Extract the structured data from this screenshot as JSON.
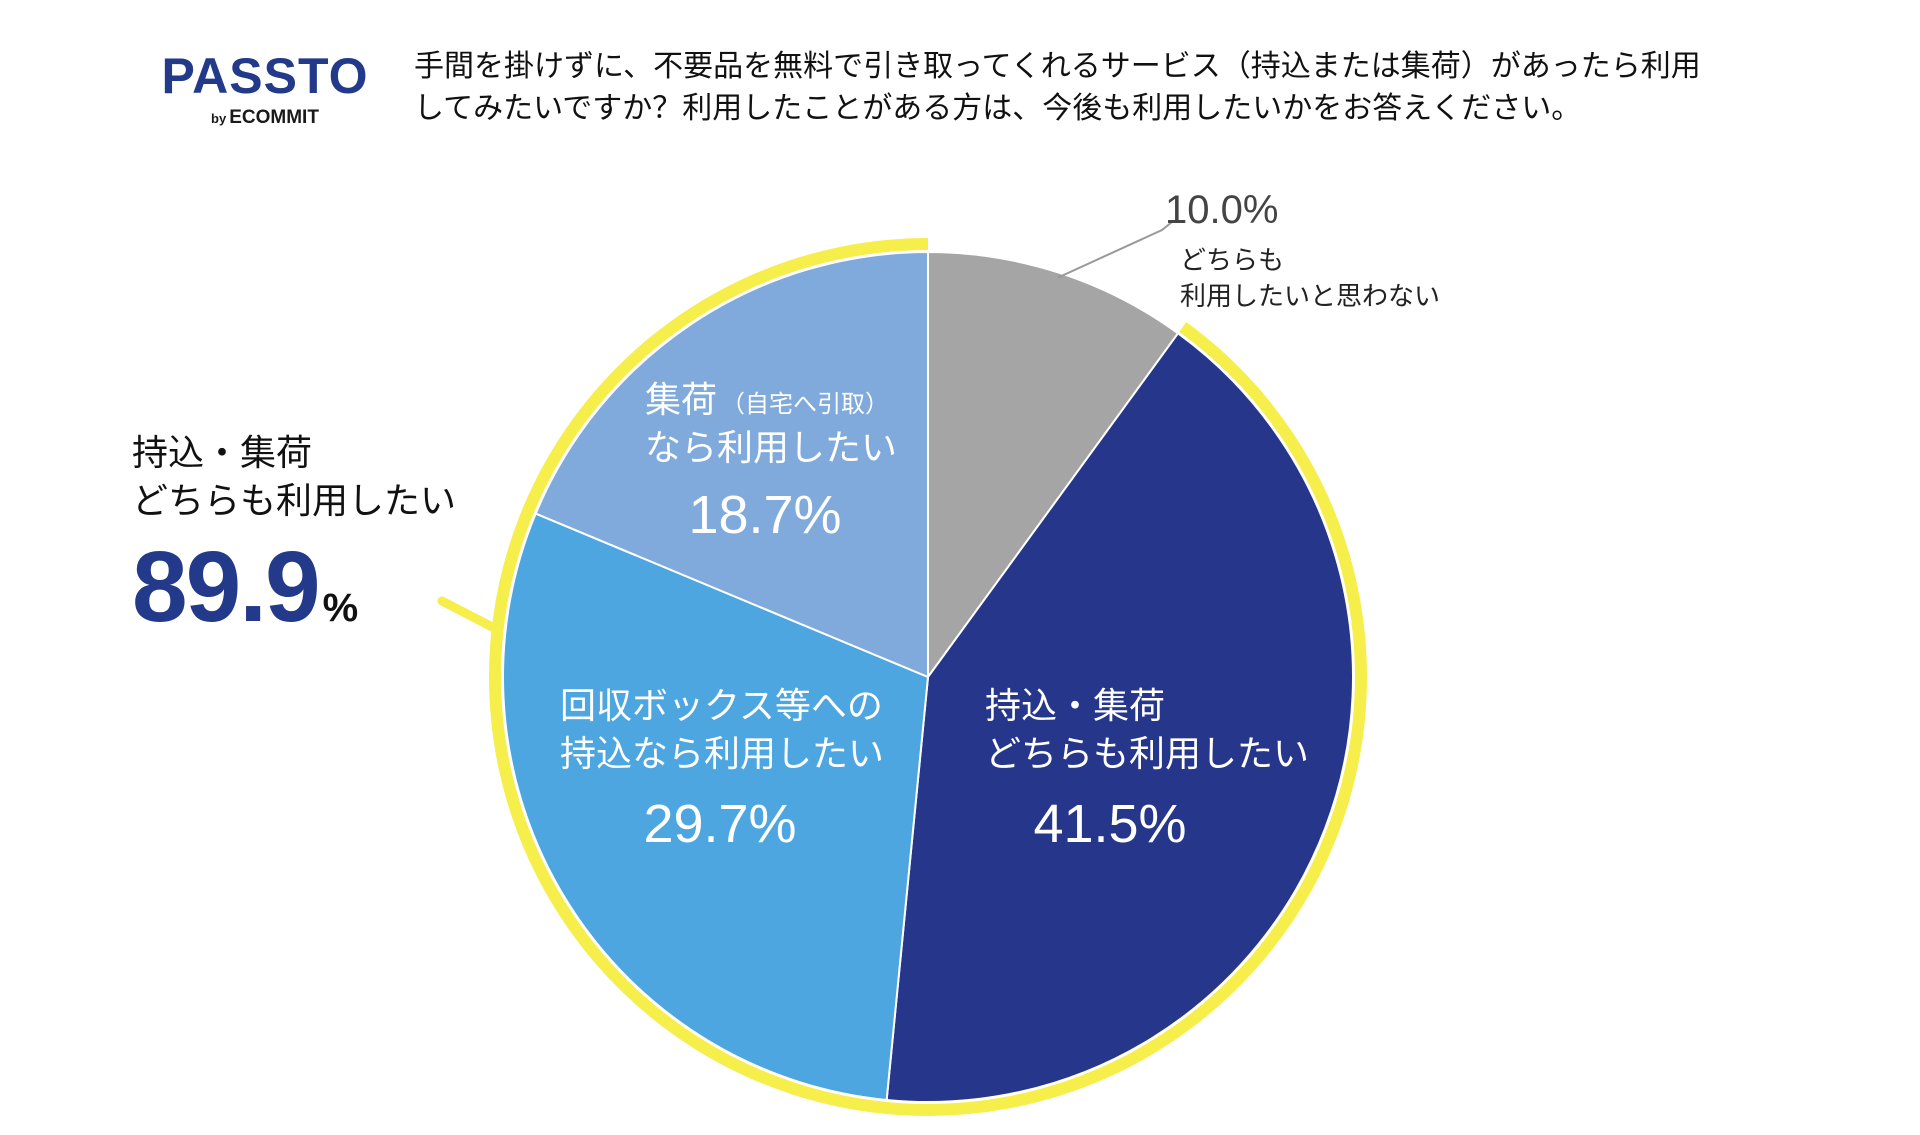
{
  "logo": {
    "brand": "PASSTO",
    "by": "by",
    "company": "ECOMMIT"
  },
  "question": {
    "line1": "手間を掛けずに、不要品を無料で引き取ってくれるサービス（持込または集荷）があったら利用",
    "line2": "してみたいですか？利用したことがある方は、今後も利用したいかをお答えください。"
  },
  "callout": {
    "line1": "持込・集荷",
    "line2": "どちらも利用したい",
    "value": "89.9",
    "unit": "%",
    "highlight_color": "#f6ee4a"
  },
  "chart_data": {
    "type": "pie",
    "title": "",
    "start_angle": "12 o'clock, clockwise",
    "slices": [
      {
        "label_lines": [
          "どちらも",
          "利用したいと思わない"
        ],
        "value": 10.0,
        "value_label": "10.0%",
        "color": "#a5a5a5",
        "label_position": "outside"
      },
      {
        "label_lines": [
          "持込・集荷",
          "どちらも利用したい"
        ],
        "value": 41.5,
        "value_label": "41.5%",
        "color": "#26368a",
        "label_position": "inside"
      },
      {
        "label_lines": [
          "回収ボックス等への",
          "持込なら利用したい"
        ],
        "value": 29.7,
        "value_label": "29.7%",
        "color": "#4da6e0",
        "label_position": "inside"
      },
      {
        "label_lines": [
          "集荷",
          "なら利用したい"
        ],
        "label_note": "（自宅へ引取）",
        "value": 18.7,
        "value_label": "18.7%",
        "color": "#7faadb",
        "label_position": "inside"
      }
    ],
    "highlight_group": {
      "slices": [
        1,
        2,
        3
      ],
      "total": 89.9,
      "color": "#f6ee4a"
    }
  }
}
